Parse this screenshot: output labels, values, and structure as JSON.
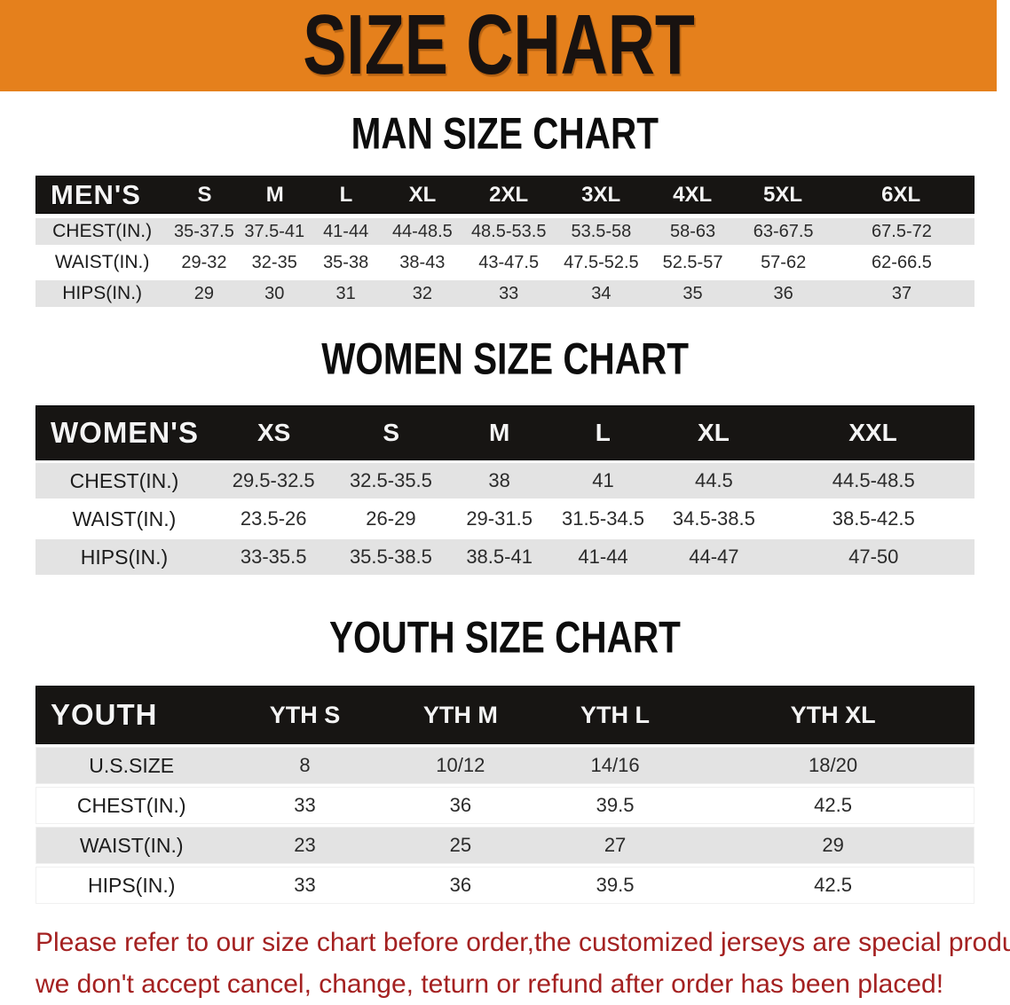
{
  "banner": {
    "title": "SIZE CHART",
    "bg_color": "#E5801C"
  },
  "colors": {
    "header_black": "#171513",
    "row_gray": "#E3E3E3",
    "disclaimer_red": "#A42121"
  },
  "sections": [
    {
      "title": "MAN SIZE CHART",
      "header_label": "MEN'S",
      "sizes": [
        "S",
        "M",
        "L",
        "XL",
        "2XL",
        "3XL",
        "4XL",
        "5XL",
        "6XL"
      ],
      "rows": [
        {
          "label": "CHEST(IN.)",
          "values": [
            "35-37.5",
            "37.5-41",
            "41-44",
            "44-48.5",
            "48.5-53.5",
            "53.5-58",
            "58-63",
            "63-67.5",
            "67.5-72"
          ]
        },
        {
          "label": "WAIST(IN.)",
          "values": [
            "29-32",
            "32-35",
            "35-38",
            "38-43",
            "43-47.5",
            "47.5-52.5",
            "52.5-57",
            "57-62",
            "62-66.5"
          ]
        },
        {
          "label": "HIPS(IN.)",
          "values": [
            "29",
            "30",
            "31",
            "32",
            "33",
            "34",
            "35",
            "36",
            "37"
          ]
        }
      ]
    },
    {
      "title": "WOMEN SIZE CHART",
      "header_label": "WOMEN'S",
      "sizes": [
        "XS",
        "S",
        "M",
        "L",
        "XL",
        "XXL"
      ],
      "rows": [
        {
          "label": "CHEST(IN.)",
          "values": [
            "29.5-32.5",
            "32.5-35.5",
            "38",
            "41",
            "44.5",
            "44.5-48.5"
          ]
        },
        {
          "label": "WAIST(IN.)",
          "values": [
            "23.5-26",
            "26-29",
            "29-31.5",
            "31.5-34.5",
            "34.5-38.5",
            "38.5-42.5"
          ]
        },
        {
          "label": "HIPS(IN.)",
          "values": [
            "33-35.5",
            "35.5-38.5",
            "38.5-41",
            "41-44",
            "44-47",
            "47-50"
          ]
        }
      ]
    },
    {
      "title": "YOUTH SIZE CHART",
      "header_label": "YOUTH",
      "sizes": [
        "YTH S",
        "YTH M",
        "YTH L",
        "YTH XL"
      ],
      "rows": [
        {
          "label": "U.S.SIZE",
          "values": [
            "8",
            "10/12",
            "14/16",
            "18/20"
          ]
        },
        {
          "label": "CHEST(IN.)",
          "values": [
            "33",
            "36",
            "39.5",
            "42.5"
          ]
        },
        {
          "label": "WAIST(IN.)",
          "values": [
            "23",
            "25",
            "27",
            "29"
          ]
        },
        {
          "label": "HIPS(IN.)",
          "values": [
            "33",
            "36",
            "39.5",
            "42.5"
          ]
        }
      ]
    }
  ],
  "disclaimer": {
    "line1": "Please refer to our size chart before order,the customized jerseys are special products,",
    "line2": "we don't accept cancel, change, teturn or refund after order has been placed!"
  }
}
